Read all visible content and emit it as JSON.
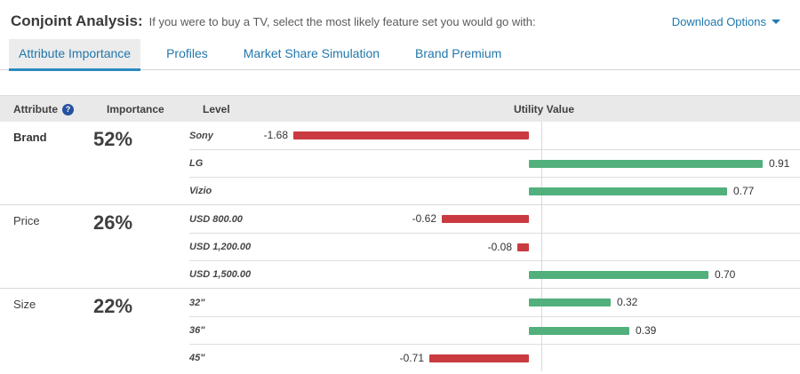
{
  "header": {
    "title": "Conjoint Analysis:",
    "subtitle": "If you were to buy a TV, select the most likely feature set you would go with:",
    "download_label": "Download Options"
  },
  "tabs": [
    {
      "label": "Attribute Importance",
      "active": true
    },
    {
      "label": "Profiles",
      "active": false
    },
    {
      "label": "Market Share Simulation",
      "active": false
    },
    {
      "label": "Brand Premium",
      "active": false
    }
  ],
  "table": {
    "columns": {
      "attribute": "Attribute",
      "importance": "Importance",
      "level": "Level",
      "utility": "Utility Value"
    },
    "help_icon": "?"
  },
  "chart_data": {
    "type": "bar",
    "orientation": "horizontal",
    "title": "Conjoint Analysis - Attribute Importance",
    "value_axis": "Utility Value",
    "colors": {
      "positive": "#52b07c",
      "negative": "#c93b41"
    },
    "sections": [
      {
        "attribute": "Brand",
        "importance": "52%",
        "levels": [
          {
            "label": "Sony",
            "value": -1.68
          },
          {
            "label": "LG",
            "value": 0.91
          },
          {
            "label": "Vizio",
            "value": 0.77
          }
        ]
      },
      {
        "attribute": "Price",
        "importance": "26%",
        "levels": [
          {
            "label": "USD 800.00",
            "value": -0.62
          },
          {
            "label": "USD 1,200.00",
            "value": -0.08
          },
          {
            "label": "USD 1,500.00",
            "value": 0.7
          }
        ]
      },
      {
        "attribute": "Size",
        "importance": "22%",
        "levels": [
          {
            "label": "32\"",
            "value": 0.32
          },
          {
            "label": "36\"",
            "value": 0.39
          },
          {
            "label": "45\"",
            "value": -0.71
          }
        ]
      }
    ]
  }
}
